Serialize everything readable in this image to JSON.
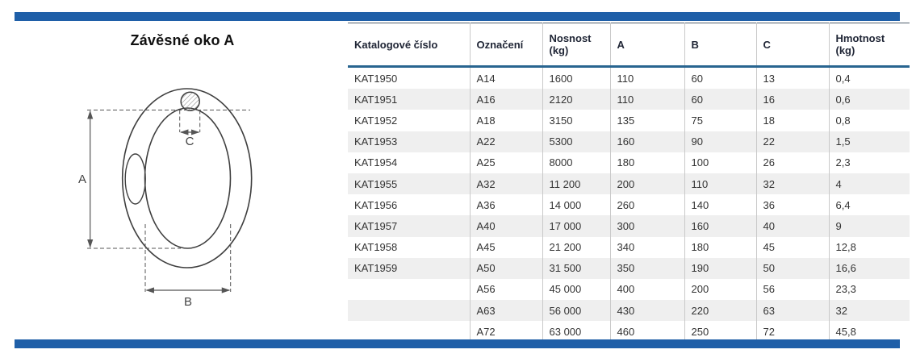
{
  "page": {
    "title": "Závěsné oko A"
  },
  "colors": {
    "accent_bar": "#1f5fa8",
    "header_rule": "#286590",
    "row_stripe": "#efefef"
  },
  "diagram": {
    "labels": {
      "a": "A",
      "b": "B",
      "c": "C"
    }
  },
  "table": {
    "columns": [
      "Katalogové číslo",
      "Označení",
      "Nosnost (kg)",
      "A",
      "B",
      "C",
      "Hmotnost (kg)"
    ],
    "rows": [
      [
        "KAT1950",
        "A14",
        "1600",
        "110",
        "60",
        "13",
        "0,4"
      ],
      [
        "KAT1951",
        "A16",
        "2120",
        "110",
        "60",
        "16",
        "0,6"
      ],
      [
        "KAT1952",
        "A18",
        "3150",
        "135",
        "75",
        "18",
        "0,8"
      ],
      [
        "KAT1953",
        "A22",
        "5300",
        "160",
        "90",
        "22",
        "1,5"
      ],
      [
        "KAT1954",
        "A25",
        "8000",
        "180",
        "100",
        "26",
        "2,3"
      ],
      [
        "KAT1955",
        "A32",
        "11 200",
        "200",
        "110",
        "32",
        "4"
      ],
      [
        "KAT1956",
        "A36",
        "14 000",
        "260",
        "140",
        "36",
        "6,4"
      ],
      [
        "KAT1957",
        "A40",
        "17 000",
        "300",
        "160",
        "40",
        "9"
      ],
      [
        "KAT1958",
        "A45",
        "21 200",
        "340",
        "180",
        "45",
        "12,8"
      ],
      [
        "KAT1959",
        "A50",
        "31 500",
        "350",
        "190",
        "50",
        "16,6"
      ],
      [
        "",
        "A56",
        "45 000",
        "400",
        "200",
        "56",
        "23,3"
      ],
      [
        "",
        "A63",
        "56 000",
        "430",
        "220",
        "63",
        "32"
      ],
      [
        "",
        "A72",
        "63 000",
        "460",
        "250",
        "72",
        "45,8"
      ]
    ]
  }
}
